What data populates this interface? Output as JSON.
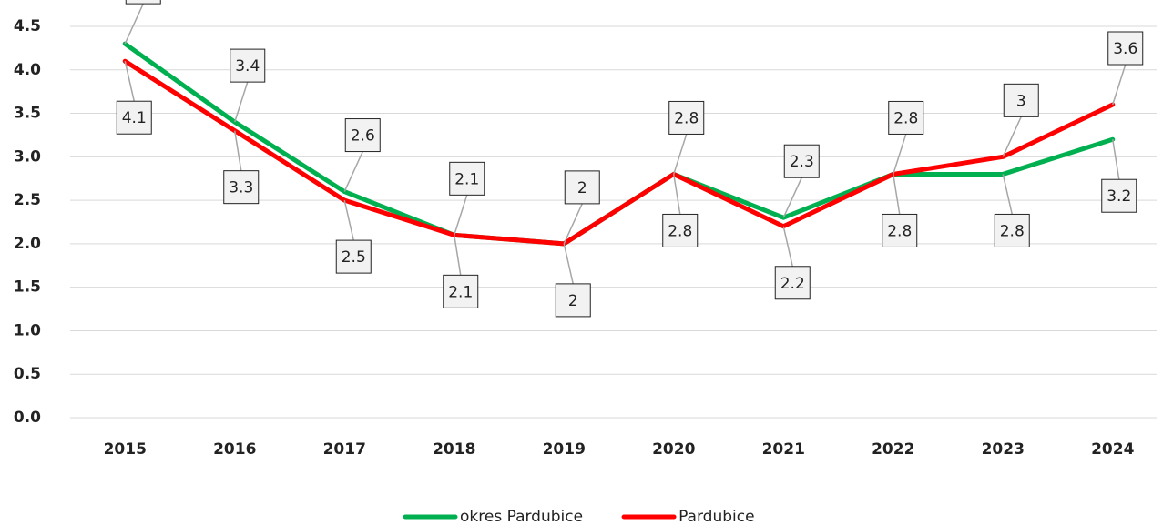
{
  "chart_data": {
    "type": "line",
    "categories": [
      "2015",
      "2016",
      "2017",
      "2018",
      "2019",
      "2020",
      "2021",
      "2022",
      "2023",
      "2024"
    ],
    "series": [
      {
        "name": "okres Pardubice",
        "color": "#00b050",
        "values": [
          4.3,
          3.4,
          2.6,
          2.1,
          2.0,
          2.8,
          2.3,
          2.8,
          2.8,
          3.2
        ]
      },
      {
        "name": "Pardubice",
        "color": "#ff0000",
        "values": [
          4.1,
          3.3,
          2.5,
          2.1,
          2.0,
          2.8,
          2.2,
          2.8,
          3.0,
          3.6
        ]
      }
    ],
    "ylim": [
      0,
      4.5
    ],
    "yticks": [
      {
        "value": 0,
        "label": "0.0"
      },
      0.5,
      {
        "value": 1,
        "label": "1.0"
      },
      1.5,
      {
        "value": 2,
        "label": "2.0"
      },
      2.5,
      {
        "value": 3,
        "label": "3.0"
      },
      3.5,
      {
        "value": 4,
        "label": "4.0"
      },
      4.5
    ],
    "grid": true
  }
}
